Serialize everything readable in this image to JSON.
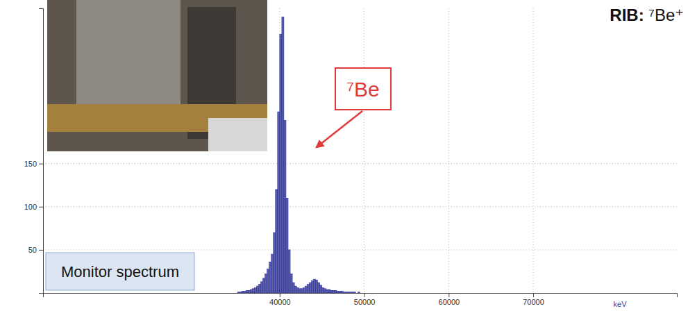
{
  "chart_data": {
    "type": "histogram",
    "title": "RIB: ⁷Be⁺",
    "x_label": "keV",
    "annotations": [
      {
        "text": "⁷Be"
      },
      {
        "text": "Monitor spectrum"
      }
    ],
    "bins": [
      35000,
      35250,
      35500,
      35750,
      36000,
      36250,
      36500,
      36750,
      37000,
      37250,
      37500,
      37750,
      38000,
      38250,
      38500,
      38750,
      39000,
      39250,
      39500,
      39750,
      40000,
      40250,
      40500,
      40750,
      41000,
      41250,
      41500,
      41750,
      42000,
      42250,
      42500,
      42750,
      43000,
      43250,
      43500,
      43750,
      44000,
      44250,
      44500,
      44750,
      45000,
      45250,
      45500,
      45750,
      46000,
      46250,
      46500,
      46750,
      47000,
      47250,
      47500,
      47750,
      48000,
      48250,
      48500,
      48750,
      49000,
      49250,
      49500,
      49750,
      50000
    ],
    "values": [
      1,
      1,
      2,
      2,
      3,
      3,
      4,
      5,
      6,
      8,
      10,
      13,
      17,
      22,
      28,
      36,
      45,
      70,
      120,
      210,
      300,
      320,
      200,
      110,
      50,
      22,
      12,
      8,
      6,
      5,
      5,
      6,
      8,
      10,
      12,
      14,
      16,
      15,
      12,
      9,
      6,
      5,
      4,
      4,
      3,
      3,
      3,
      2,
      2,
      2,
      1,
      1,
      1,
      1,
      1,
      1,
      0,
      1,
      0,
      0
    ],
    "color": "#5a5fa8",
    "xlim": [
      12000,
      87000
    ],
    "xticks": [
      40000,
      50000,
      60000,
      70000
    ],
    "ylim": [
      0,
      330
    ],
    "yticks": [
      50,
      100,
      150
    ],
    "grid": true
  }
}
